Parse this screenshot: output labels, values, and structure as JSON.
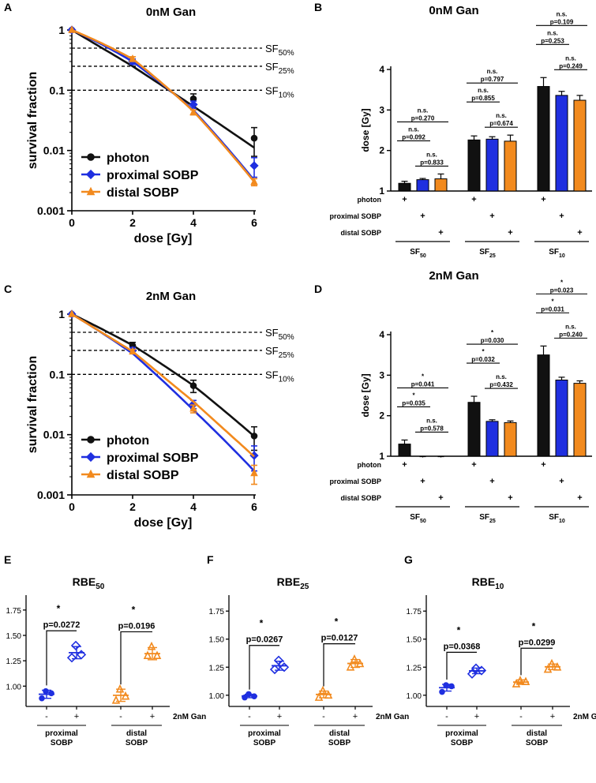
{
  "colors": {
    "photon": "#111111",
    "proximal": "#1f2fe0",
    "distal": "#f28a1e",
    "axis": "#000000"
  },
  "chart_data": [
    {
      "panel": "A",
      "type": "line",
      "title": "0nM Gan",
      "xlabel": "dose [Gy]",
      "ylabel": "survival fraction",
      "xlim": [
        0,
        6
      ],
      "ylim": [
        0.001,
        1
      ],
      "yscale": "log",
      "xticks": [
        "0",
        "2",
        "4",
        "6"
      ],
      "yticks": [
        "1",
        "0.1",
        "0.01",
        "0.001"
      ],
      "reference_lines": [
        {
          "y": 0.5,
          "label": "SF",
          "sub": "50%"
        },
        {
          "y": 0.25,
          "label": "SF",
          "sub": "25%"
        },
        {
          "y": 0.1,
          "label": "SF",
          "sub": "10%"
        }
      ],
      "legend": [
        "photon",
        "proximal SOBP",
        "distal SOBP"
      ],
      "series": [
        {
          "name": "photon",
          "key": "photon",
          "x": [
            0,
            2,
            4,
            6
          ],
          "values": [
            1,
            0.3,
            0.072,
            0.016
          ],
          "err": [
            0,
            0.03,
            0.015,
            0.008
          ],
          "fit": [
            0.8606,
            0.0
          ]
        },
        {
          "name": "proximal SOBP",
          "key": "proximal",
          "x": [
            0,
            2,
            4,
            6
          ],
          "values": [
            1,
            0.3,
            0.058,
            0.0056
          ],
          "err": [
            0,
            0.03,
            0.008,
            0.002
          ],
          "fit": [
            0.35,
            0.13
          ]
        },
        {
          "name": "distal SOBP",
          "key": "distal",
          "x": [
            0,
            2,
            4,
            6
          ],
          "values": [
            1,
            0.33,
            0.043,
            0.003
          ],
          "err": [
            0,
            0.03,
            0.004,
            0.0004
          ],
          "fit": [
            0.344,
            0.103
          ]
        }
      ]
    },
    {
      "panel": "C",
      "type": "line",
      "title": "2nM Gan",
      "xlabel": "dose [Gy]",
      "ylabel": "survival fraction",
      "xlim": [
        0,
        6
      ],
      "ylim": [
        0.001,
        1
      ],
      "yscale": "log",
      "xticks": [
        "0",
        "2",
        "4",
        "6"
      ],
      "yticks": [
        "1",
        "0.1",
        "0.01",
        "0.001"
      ],
      "reference_lines": [
        {
          "y": 0.5,
          "label": "SF",
          "sub": "50%"
        },
        {
          "y": 0.25,
          "label": "SF",
          "sub": "25%"
        },
        {
          "y": 0.1,
          "label": "SF",
          "sub": "10%"
        }
      ],
      "legend": [
        "photon",
        "proximal SOBP",
        "distal SOBP"
      ],
      "series": [
        {
          "name": "photon",
          "key": "photon",
          "x": [
            0,
            2,
            4,
            6
          ],
          "values": [
            1,
            0.3,
            0.065,
            0.0095
          ],
          "err": [
            0,
            0.04,
            0.015,
            0.004
          ],
          "fit": [
            0.48,
            0.05
          ]
        },
        {
          "name": "proximal SOBP",
          "key": "proximal",
          "x": [
            0,
            2,
            4,
            6
          ],
          "values": [
            1,
            0.25,
            0.032,
            0.0045
          ],
          "err": [
            0,
            0.03,
            0.005,
            0.002
          ],
          "fit": [
            0.7,
            0.08
          ]
        },
        {
          "name": "distal SOBP",
          "key": "distal",
          "x": [
            0,
            2,
            4,
            6
          ],
          "values": [
            1,
            0.24,
            0.027,
            0.0023
          ],
          "err": [
            0,
            0.02,
            0.004,
            0.0008
          ],
          "fit": [
            0.71,
            0.0
          ]
        }
      ]
    },
    {
      "panel": "B",
      "type": "bar",
      "title": "0nM Gan",
      "ylabel": "dose [Gy]",
      "ylim": [
        1,
        4
      ],
      "yticks": [
        "1",
        "2",
        "3",
        "4"
      ],
      "row_labels": [
        "photon",
        "proximal SOBP",
        "distal SOBP"
      ],
      "groups": [
        {
          "label": "SF",
          "sub": "50",
          "values": [
            1.19,
            1.28,
            1.3
          ],
          "err": [
            0.05,
            0.03,
            0.12
          ]
        },
        {
          "label": "SF",
          "sub": "25",
          "values": [
            2.26,
            2.28,
            2.23
          ],
          "err": [
            0.1,
            0.06,
            0.15
          ]
        },
        {
          "label": "SF",
          "sub": "10",
          "values": [
            3.58,
            3.36,
            3.24
          ],
          "err": [
            0.22,
            0.1,
            0.12
          ]
        }
      ],
      "comparisons": [
        {
          "group": 0,
          "from": 0,
          "to": 1,
          "star": "n.s.",
          "p": "p=0.092"
        },
        {
          "group": 0,
          "from": 0,
          "to": 2,
          "star": "n.s.",
          "p": "p=0.270"
        },
        {
          "group": 0,
          "from": 1,
          "to": 2,
          "star": "n.s.",
          "p": "p=0.833"
        },
        {
          "group": 1,
          "from": 0,
          "to": 1,
          "star": "n.s.",
          "p": "p=0.855"
        },
        {
          "group": 1,
          "from": 0,
          "to": 2,
          "star": "n.s.",
          "p": "p=0.797"
        },
        {
          "group": 1,
          "from": 1,
          "to": 2,
          "star": "n.s.",
          "p": "p=0.674"
        },
        {
          "group": 2,
          "from": 0,
          "to": 1,
          "star": "n.s.",
          "p": "p=0.253"
        },
        {
          "group": 2,
          "from": 0,
          "to": 2,
          "star": "n.s.",
          "p": "p=0.109"
        },
        {
          "group": 2,
          "from": 1,
          "to": 2,
          "star": "n.s.",
          "p": "p=0.249"
        }
      ]
    },
    {
      "panel": "D",
      "type": "bar",
      "title": "2nM Gan",
      "ylabel": "dose [Gy]",
      "ylim": [
        1,
        4
      ],
      "yticks": [
        "1",
        "2",
        "3",
        "4"
      ],
      "row_labels": [
        "photon",
        "proximal SOBP",
        "distal SOBP"
      ],
      "groups": [
        {
          "label": "SF",
          "sub": "50",
          "values": [
            1.3,
            0.97,
            0.97
          ],
          "err": [
            0.1,
            0.02,
            0.02
          ]
        },
        {
          "label": "SF",
          "sub": "25",
          "values": [
            2.33,
            1.86,
            1.83
          ],
          "err": [
            0.15,
            0.04,
            0.04
          ]
        },
        {
          "label": "SF",
          "sub": "10",
          "values": [
            3.5,
            2.88,
            2.8
          ],
          "err": [
            0.22,
            0.07,
            0.06
          ]
        }
      ],
      "comparisons": [
        {
          "group": 0,
          "from": 0,
          "to": 1,
          "star": "*",
          "p": "p=0.035"
        },
        {
          "group": 0,
          "from": 0,
          "to": 2,
          "star": "*",
          "p": "p=0.041"
        },
        {
          "group": 0,
          "from": 1,
          "to": 2,
          "star": "n.s.",
          "p": "p=0.578"
        },
        {
          "group": 1,
          "from": 0,
          "to": 1,
          "star": "*",
          "p": "p=0.032"
        },
        {
          "group": 1,
          "from": 0,
          "to": 2,
          "star": "*",
          "p": "p=0.030"
        },
        {
          "group": 1,
          "from": 1,
          "to": 2,
          "star": "n.s.",
          "p": "p=0.432"
        },
        {
          "group": 2,
          "from": 0,
          "to": 1,
          "star": "*",
          "p": "p=0.031"
        },
        {
          "group": 2,
          "from": 0,
          "to": 2,
          "star": "*",
          "p": "p=0.023"
        },
        {
          "group": 2,
          "from": 1,
          "to": 2,
          "star": "n.s.",
          "p": "p=0.240"
        }
      ]
    },
    {
      "panel": "E",
      "type": "scatter",
      "title": "RBE",
      "title_sub": "50",
      "ylim": [
        0.8,
        1.85
      ],
      "yticks": [
        "1.00",
        "1.25",
        "1.50",
        "1.75"
      ],
      "xtick_labels": [
        "-",
        "+",
        "-",
        "+"
      ],
      "condition_label": "2nM Gan",
      "group_labels": [
        [
          "proximal",
          "SOBP"
        ],
        [
          "distal",
          "SOBP"
        ]
      ],
      "columns": [
        {
          "key": "proximal",
          "marker": "circle",
          "points": [
            0.95,
            0.93,
            0.88
          ],
          "mean": 0.92,
          "sd": 0.04
        },
        {
          "key": "proximal",
          "marker": "diamond",
          "points": [
            1.4,
            1.31,
            1.28
          ],
          "mean": 1.33,
          "sd": 0.06
        },
        {
          "key": "distal",
          "marker": "triangle",
          "points": [
            0.97,
            0.9,
            0.86
          ],
          "mean": 0.91,
          "sd": 0.06
        },
        {
          "key": "distal",
          "marker": "triangle",
          "points": [
            1.39,
            1.3,
            1.3
          ],
          "mean": 1.32,
          "sd": 0.06
        }
      ],
      "comparisons": [
        {
          "from": 0,
          "to": 1,
          "star": "*",
          "p": "p=0.0272"
        },
        {
          "from": 2,
          "to": 3,
          "star": "*",
          "p": "p=0.0196"
        }
      ]
    },
    {
      "panel": "F",
      "type": "scatter",
      "title": "RBE",
      "title_sub": "25",
      "ylim": [
        0.9,
        1.85
      ],
      "yticks": [
        "1.00",
        "1.25",
        "1.50",
        "1.75"
      ],
      "xtick_labels": [
        "-",
        "+",
        "-",
        "+"
      ],
      "condition_label": "2nM Gan",
      "group_labels": [
        [
          "proximal",
          "SOBP"
        ],
        [
          "distal",
          "SOBP"
        ]
      ],
      "columns": [
        {
          "key": "proximal",
          "marker": "circle",
          "points": [
            1.01,
            0.99,
            0.98
          ],
          "mean": 0.993,
          "sd": 0.015
        },
        {
          "key": "proximal",
          "marker": "diamond",
          "points": [
            1.31,
            1.25,
            1.23
          ],
          "mean": 1.263,
          "sd": 0.04
        },
        {
          "key": "distal",
          "marker": "triangle",
          "points": [
            1.04,
            1.0,
            0.98
          ],
          "mean": 1.007,
          "sd": 0.03
        },
        {
          "key": "distal",
          "marker": "triangle",
          "points": [
            1.32,
            1.28,
            1.25
          ],
          "mean": 1.283,
          "sd": 0.035
        }
      ],
      "comparisons": [
        {
          "from": 0,
          "to": 1,
          "star": "*",
          "p": "p=0.0267"
        },
        {
          "from": 2,
          "to": 3,
          "star": "*",
          "p": "p=0.0127"
        }
      ]
    },
    {
      "panel": "G",
      "type": "scatter",
      "title": "RBE",
      "title_sub": "10",
      "ylim": [
        0.9,
        1.85
      ],
      "yticks": [
        "1.00",
        "1.25",
        "1.50",
        "1.75"
      ],
      "xtick_labels": [
        "-",
        "+",
        "-",
        "+"
      ],
      "condition_label": "2nM Gan",
      "group_labels": [
        [
          "proximal",
          "SOBP"
        ],
        [
          "distal",
          "SOBP"
        ]
      ],
      "columns": [
        {
          "key": "proximal",
          "marker": "circle",
          "points": [
            1.09,
            1.08,
            1.03
          ],
          "mean": 1.067,
          "sd": 0.03
        },
        {
          "key": "proximal",
          "marker": "diamond",
          "points": [
            1.24,
            1.22,
            1.19
          ],
          "mean": 1.217,
          "sd": 0.025
        },
        {
          "key": "distal",
          "marker": "triangle",
          "points": [
            1.13,
            1.12,
            1.1
          ],
          "mean": 1.117,
          "sd": 0.02
        },
        {
          "key": "distal",
          "marker": "triangle",
          "points": [
            1.28,
            1.25,
            1.23
          ],
          "mean": 1.253,
          "sd": 0.025
        }
      ],
      "comparisons": [
        {
          "from": 0,
          "to": 1,
          "star": "*",
          "p": "p=0.0368"
        },
        {
          "from": 2,
          "to": 3,
          "star": "*",
          "p": "p=0.0299"
        }
      ]
    }
  ],
  "panel_letters": [
    "A",
    "B",
    "C",
    "D",
    "E",
    "F",
    "G"
  ]
}
